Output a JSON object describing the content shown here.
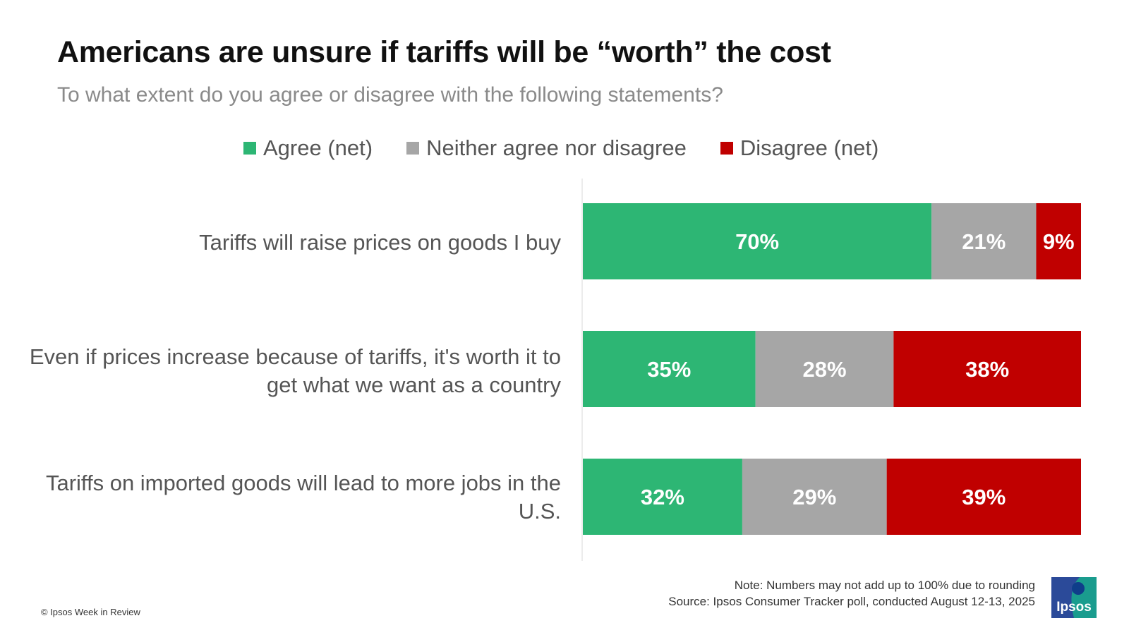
{
  "title": "Americans are unsure if tariffs will be “worth” the cost",
  "subtitle": "To what extent do you agree or disagree with the following statements?",
  "legend": [
    {
      "label": "Agree (net)",
      "color": "#2db674"
    },
    {
      "label": "Neither agree nor disagree",
      "color": "#a6a6a6"
    },
    {
      "label": "Disagree (net)",
      "color": "#c00000"
    }
  ],
  "chart_data": {
    "type": "bar",
    "orientation": "horizontal",
    "stacked": true,
    "categories": [
      "Tariffs will raise prices on goods I buy",
      "Even if prices increase because of tariffs, it's worth it to get what we want as a country",
      "Tariffs on imported goods will lead to more jobs in the U.S."
    ],
    "series": [
      {
        "name": "Agree (net)",
        "color": "#2db674",
        "values": [
          70,
          35,
          32
        ]
      },
      {
        "name": "Neither agree nor disagree",
        "color": "#a6a6a6",
        "values": [
          21,
          28,
          29
        ]
      },
      {
        "name": "Disagree (net)",
        "color": "#c00000",
        "values": [
          9,
          38,
          39
        ]
      }
    ],
    "data_labels": [
      [
        "70%",
        "21%",
        "9%"
      ],
      [
        "35%",
        "28%",
        "38%"
      ],
      [
        "32%",
        "29%",
        "39%"
      ]
    ],
    "legend_position": "top",
    "grid": false
  },
  "footer": {
    "note": "Note: Numbers may not add up to 100% due to rounding",
    "source": "Source: Ipsos Consumer Tracker poll, conducted August 12-13, 2025",
    "copyright": "© Ipsos Week in Review",
    "logo_text": "Ipsos"
  }
}
